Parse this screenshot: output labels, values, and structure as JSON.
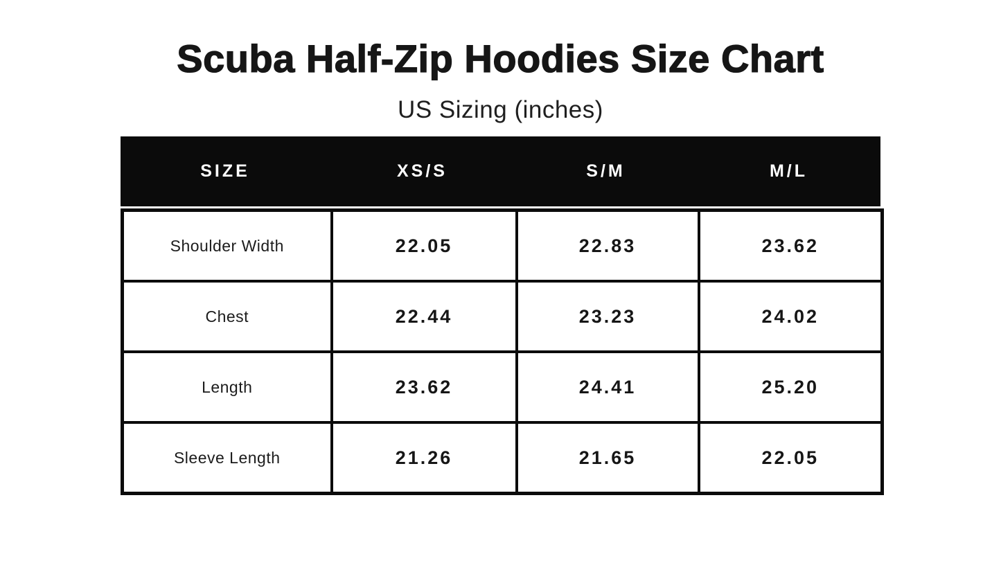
{
  "chart_data": {
    "type": "table",
    "title": "Scuba Half-Zip Hoodies Size Chart",
    "subtitle": "US Sizing (inches)",
    "unit": "inches",
    "columns": [
      "SIZE",
      "XS/S",
      "S/M",
      "M/L"
    ],
    "rows": [
      {
        "label": "Shoulder Width",
        "values": [
          "22.05",
          "22.83",
          "23.62"
        ]
      },
      {
        "label": "Chest",
        "values": [
          "22.44",
          "23.23",
          "24.02"
        ]
      },
      {
        "label": "Length",
        "values": [
          "23.62",
          "24.41",
          "25.20"
        ]
      },
      {
        "label": "Sleeve Length",
        "values": [
          "21.26",
          "21.65",
          "22.05"
        ]
      }
    ]
  },
  "colors": {
    "background": "#ffffff",
    "table_header_bg": "#0b0b0b",
    "table_header_text": "#ffffff",
    "table_border": "#0b0b0b",
    "text": "#161616"
  }
}
